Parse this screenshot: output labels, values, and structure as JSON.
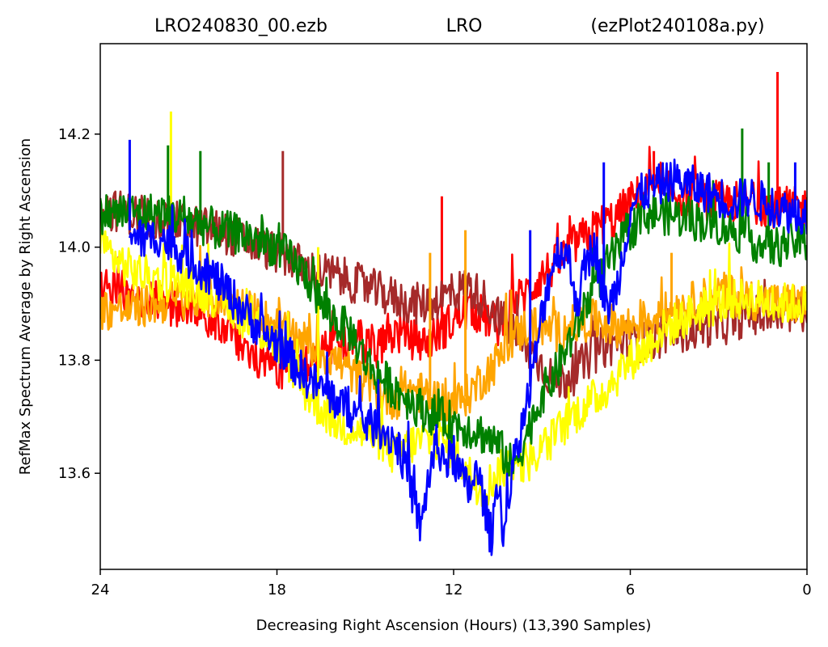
{
  "chart_data": {
    "type": "line",
    "title_parts": {
      "left": "LRO240830_00.ezb",
      "center": "LRO",
      "right": "(ezPlot240108a.py)"
    },
    "xlabel": "Decreasing Right Ascension (Hours) (13,390 Samples)",
    "ylabel": "RefMax Spectrum Average by Right Ascension",
    "x_inverted": true,
    "xlim": [
      24,
      0
    ],
    "ylim": [
      13.43,
      14.36
    ],
    "xticks": [
      24,
      18,
      12,
      6,
      0
    ],
    "xtick_labels": [
      "24",
      "18",
      "12",
      "6",
      "0"
    ],
    "yticks": [
      13.6,
      13.8,
      14.0,
      14.2
    ],
    "ytick_labels": [
      "13.6",
      "13.8",
      "14.0",
      "14.2"
    ],
    "grid": false,
    "legend": false,
    "series": [
      {
        "color": "#ff0000",
        "x": [
          24,
          23,
          22,
          21,
          20,
          19.5,
          19,
          18.5,
          18,
          17.5,
          17,
          16,
          15.5,
          15,
          14.5,
          14,
          13.5,
          13,
          12.5,
          12,
          11.5,
          11,
          10.5,
          10,
          9.5,
          9,
          8.5,
          8,
          7.5,
          7,
          6.5,
          6,
          5.5,
          5,
          4,
          3,
          2,
          1,
          0.5,
          0
        ],
        "y": [
          13.93,
          13.92,
          13.9,
          13.89,
          13.87,
          13.84,
          13.82,
          13.8,
          13.79,
          13.78,
          13.8,
          13.83,
          13.84,
          13.83,
          13.82,
          13.85,
          13.84,
          13.83,
          13.85,
          13.87,
          13.89,
          13.88,
          13.86,
          13.9,
          13.92,
          13.95,
          13.97,
          14.0,
          14.02,
          14.04,
          14.05,
          14.08,
          14.1,
          14.1,
          14.09,
          14.08,
          14.08,
          14.07,
          14.07,
          14.07
        ],
        "spikes": [
          [
            12.4,
            14.09
          ],
          [
            1.0,
            14.31
          ],
          [
            5.2,
            14.17
          ]
        ]
      },
      {
        "color": "#a52a2a",
        "x": [
          24,
          23,
          22,
          21,
          20,
          19,
          18,
          17.5,
          17,
          16,
          15,
          14.5,
          14,
          13.5,
          13,
          12.5,
          12,
          11.5,
          11,
          10.5,
          10,
          9.5,
          9,
          8.5,
          8,
          7.5,
          7,
          6.5,
          6,
          5.5,
          5,
          4.5,
          4,
          3.5,
          3,
          2.5,
          2,
          1,
          0
        ],
        "y": [
          14.07,
          14.06,
          14.05,
          14.04,
          14.03,
          14.01,
          13.99,
          13.98,
          13.96,
          13.95,
          13.93,
          13.92,
          13.91,
          13.9,
          13.9,
          13.91,
          13.92,
          13.93,
          13.91,
          13.88,
          13.85,
          13.82,
          13.79,
          13.76,
          13.77,
          13.8,
          13.82,
          13.83,
          13.84,
          13.83,
          13.84,
          13.85,
          13.85,
          13.86,
          13.86,
          13.87,
          13.88,
          13.88,
          13.89
        ],
        "spikes": [
          [
            17.8,
            14.17
          ]
        ]
      },
      {
        "color": "#ffa500",
        "x": [
          24,
          23,
          22,
          21,
          20,
          19,
          18,
          17,
          16,
          15,
          14.5,
          14,
          13.5,
          13,
          12.5,
          12,
          11.5,
          11,
          10.5,
          10,
          9.5,
          9,
          8.5,
          8,
          7.5,
          7,
          6.5,
          6,
          5.5,
          5,
          4,
          3,
          2,
          1,
          0
        ],
        "y": [
          13.89,
          13.89,
          13.9,
          13.91,
          13.91,
          13.89,
          13.86,
          13.83,
          13.8,
          13.76,
          13.74,
          13.73,
          13.75,
          13.74,
          13.73,
          13.72,
          13.74,
          13.77,
          13.8,
          13.84,
          13.86,
          13.86,
          13.85,
          13.86,
          13.87,
          13.87,
          13.86,
          13.86,
          13.87,
          13.88,
          13.9,
          13.92,
          13.91,
          13.9,
          13.9
        ],
        "spikes": [
          [
            11.6,
            14.03
          ],
          [
            12.8,
            13.99
          ],
          [
            4.6,
            13.99
          ]
        ]
      },
      {
        "color": "#ffff00",
        "x": [
          24,
          23.5,
          23,
          22,
          21.5,
          21,
          20,
          19,
          18,
          17.5,
          17,
          16,
          15.5,
          15,
          14.5,
          14,
          13.5,
          13,
          12.5,
          12,
          11.5,
          11,
          10.5,
          10,
          9.5,
          9,
          8.5,
          8,
          7.5,
          7,
          6.5,
          6,
          5.5,
          5,
          4,
          3,
          2,
          1,
          0
        ],
        "y": [
          14.01,
          13.98,
          13.96,
          13.94,
          13.94,
          13.93,
          13.91,
          13.87,
          13.83,
          13.79,
          13.74,
          13.69,
          13.68,
          13.67,
          13.66,
          13.63,
          13.65,
          13.66,
          13.66,
          13.64,
          13.6,
          13.57,
          13.6,
          13.62,
          13.62,
          13.64,
          13.67,
          13.7,
          13.72,
          13.74,
          13.77,
          13.8,
          13.82,
          13.85,
          13.88,
          13.9,
          13.91,
          13.9,
          13.9
        ],
        "spikes": [
          [
            21.6,
            14.24
          ],
          [
            16.6,
            14.0
          ]
        ]
      },
      {
        "color": "#008000",
        "x": [
          24,
          23,
          22,
          21,
          20,
          19,
          18,
          17,
          16.5,
          16,
          15.5,
          15,
          14.5,
          14,
          13.5,
          13,
          12.5,
          12,
          11.5,
          11,
          10.5,
          10,
          9.5,
          9,
          8.5,
          8,
          7.5,
          7,
          6.5,
          6,
          5.5,
          5,
          4,
          3,
          2,
          1.5,
          1,
          0.5,
          0
        ],
        "y": [
          14.06,
          14.06,
          14.06,
          14.05,
          14.03,
          14.02,
          14.0,
          13.95,
          13.9,
          13.87,
          13.85,
          13.8,
          13.77,
          13.75,
          13.73,
          13.71,
          13.7,
          13.69,
          13.68,
          13.67,
          13.65,
          13.61,
          13.67,
          13.74,
          13.78,
          13.84,
          13.9,
          13.95,
          13.99,
          14.03,
          14.06,
          14.06,
          14.05,
          14.04,
          14.02,
          14.0,
          14.0,
          14.01,
          14.01
        ],
        "spikes": [
          [
            21.7,
            14.18
          ],
          [
            20.6,
            14.17
          ],
          [
            2.2,
            14.21
          ],
          [
            1.3,
            14.15
          ]
        ]
      },
      {
        "color": "#0000ff",
        "x": [
          23,
          22.5,
          22,
          21.5,
          21,
          20.5,
          20,
          19.5,
          19,
          18.5,
          18,
          17.5,
          17,
          16.5,
          16,
          15.5,
          15,
          14.5,
          14,
          13.6,
          13.3,
          13.1,
          12.9,
          12.6,
          12.2,
          12,
          11.8,
          11.5,
          11.2,
          11,
          10.8,
          10.7,
          10.5,
          10.3,
          10.1,
          9.9,
          9.6,
          9.3,
          9.0,
          8.7,
          8.4,
          8.1,
          7.8,
          7.5,
          7.2,
          7.0,
          6.8,
          6.5,
          6.2,
          6.0,
          5.5,
          5,
          4.5,
          4,
          3.5,
          3,
          2.5,
          2,
          1.5,
          1,
          0.5,
          0
        ],
        "y": [
          14.03,
          14.01,
          14.02,
          14.0,
          13.98,
          13.96,
          13.94,
          13.91,
          13.88,
          13.85,
          13.83,
          13.8,
          13.77,
          13.75,
          13.73,
          13.71,
          13.69,
          13.68,
          13.66,
          13.61,
          13.54,
          13.5,
          13.58,
          13.65,
          13.62,
          13.63,
          13.6,
          13.57,
          13.6,
          13.56,
          13.5,
          13.49,
          13.6,
          13.49,
          13.55,
          13.64,
          13.7,
          13.78,
          13.88,
          13.96,
          14.0,
          13.98,
          13.9,
          13.97,
          14.01,
          13.94,
          13.89,
          13.92,
          14.0,
          14.07,
          14.1,
          14.11,
          14.12,
          14.11,
          14.1,
          14.09,
          14.08,
          14.09,
          14.08,
          14.07,
          14.06,
          14.06
        ],
        "spikes": [
          [
            23.0,
            14.19
          ],
          [
            9.4,
            14.03
          ],
          [
            6.9,
            14.15
          ],
          [
            0.4,
            14.15
          ]
        ]
      }
    ]
  }
}
